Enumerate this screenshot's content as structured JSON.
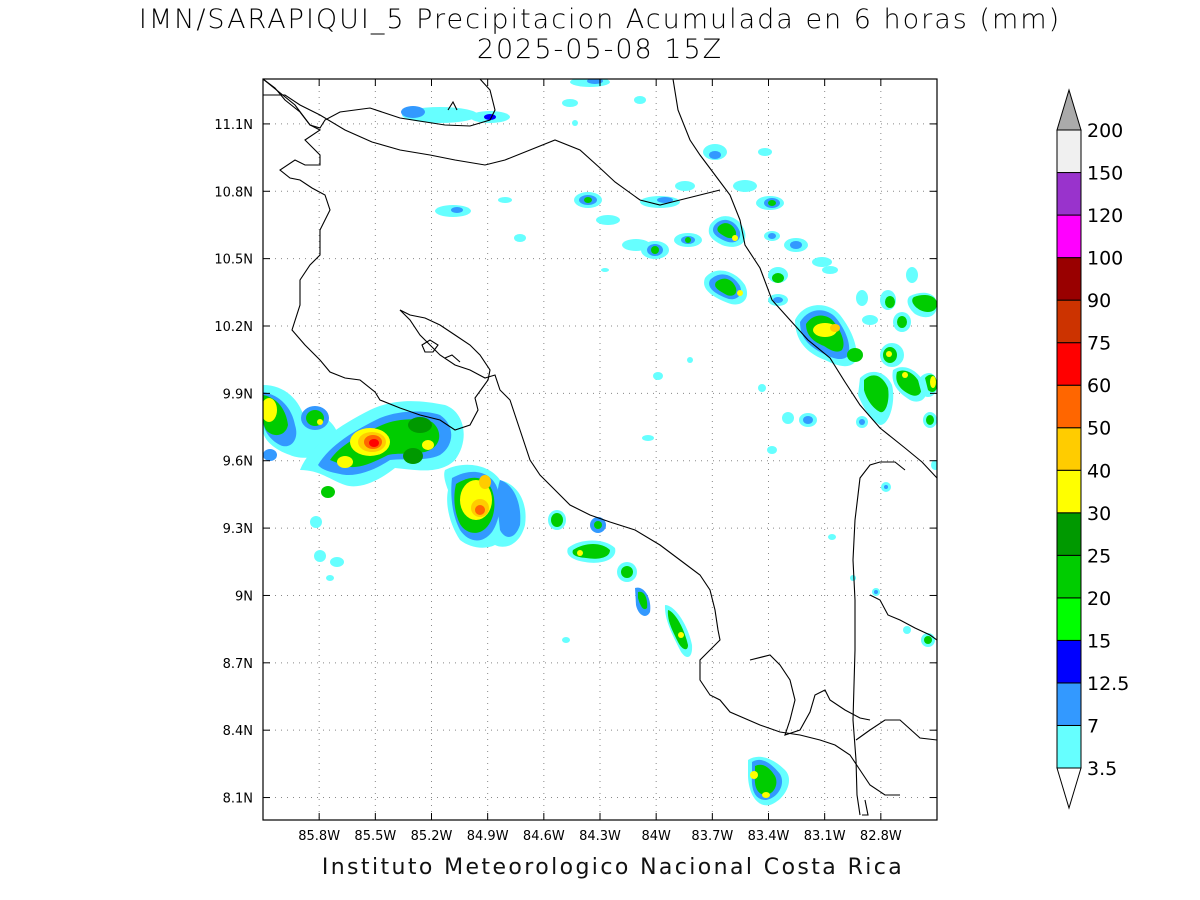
{
  "title": {
    "line1": "IMN/SARAPIQUI_5 Precipitacion Acumulada en 6 horas (mm)",
    "line2": "2025-05-08 15Z"
  },
  "footer": "Instituto Meteorologico Nacional Costa Rica",
  "map": {
    "lon_range": [
      -86.1,
      -82.5
    ],
    "lat_range": [
      8.0,
      11.3
    ],
    "x_ticks": [
      {
        "value": -85.8,
        "label": "85.8W"
      },
      {
        "value": -85.5,
        "label": "85.5W"
      },
      {
        "value": -85.2,
        "label": "85.2W"
      },
      {
        "value": -84.9,
        "label": "84.9W"
      },
      {
        "value": -84.6,
        "label": "84.6W"
      },
      {
        "value": -84.3,
        "label": "84.3W"
      },
      {
        "value": -84.0,
        "label": "84W"
      },
      {
        "value": -83.7,
        "label": "83.7W"
      },
      {
        "value": -83.4,
        "label": "83.4W"
      },
      {
        "value": -83.1,
        "label": "83.1W"
      },
      {
        "value": -82.8,
        "label": "82.8W"
      }
    ],
    "y_ticks": [
      {
        "value": 8.1,
        "label": "8.1N"
      },
      {
        "value": 8.4,
        "label": "8.4N"
      },
      {
        "value": 8.7,
        "label": "8.7N"
      },
      {
        "value": 9.0,
        "label": "9N"
      },
      {
        "value": 9.3,
        "label": "9.3N"
      },
      {
        "value": 9.6,
        "label": "9.6N"
      },
      {
        "value": 9.9,
        "label": "9.9N"
      },
      {
        "value": 10.2,
        "label": "10.2N"
      },
      {
        "value": 10.5,
        "label": "10.5N"
      },
      {
        "value": 10.8,
        "label": "10.8N"
      },
      {
        "value": 11.1,
        "label": "11.1N"
      }
    ],
    "grid": "dotted"
  },
  "legend": {
    "levels": [
      {
        "label": "3.5",
        "color": "#66ffff"
      },
      {
        "label": "7",
        "color": "#3399ff"
      },
      {
        "label": "12.5",
        "color": "#0000ff"
      },
      {
        "label": "15",
        "color": "#00ff00"
      },
      {
        "label": "20",
        "color": "#00cc00"
      },
      {
        "label": "25",
        "color": "#009900"
      },
      {
        "label": "30",
        "color": "#ffff00"
      },
      {
        "label": "40",
        "color": "#ffcc00"
      },
      {
        "label": "50",
        "color": "#ff6600"
      },
      {
        "label": "60",
        "color": "#ff0000"
      },
      {
        "label": "75",
        "color": "#cc3300"
      },
      {
        "label": "90",
        "color": "#990000"
      },
      {
        "label": "100",
        "color": "#ff00ff"
      },
      {
        "label": "120",
        "color": "#9933cc"
      },
      {
        "label": "150",
        "color": "#f0f0f0"
      },
      {
        "label": "200",
        "color": "#aaaaaa"
      }
    ]
  },
  "precip_cells": [
    {
      "lon": -85.7,
      "lat": 9.95,
      "max_mm": 30
    },
    {
      "lon": -85.42,
      "lat": 9.64,
      "max_mm": 60
    },
    {
      "lon": -85.18,
      "lat": 9.72,
      "max_mm": 25
    },
    {
      "lon": -84.92,
      "lat": 9.42,
      "max_mm": 50
    },
    {
      "lon": -83.38,
      "lat": 8.2,
      "max_mm": 25
    },
    {
      "lon": -83.0,
      "lat": 10.2,
      "max_mm": 30
    },
    {
      "lon": -82.55,
      "lat": 9.92,
      "max_mm": 30
    }
  ]
}
